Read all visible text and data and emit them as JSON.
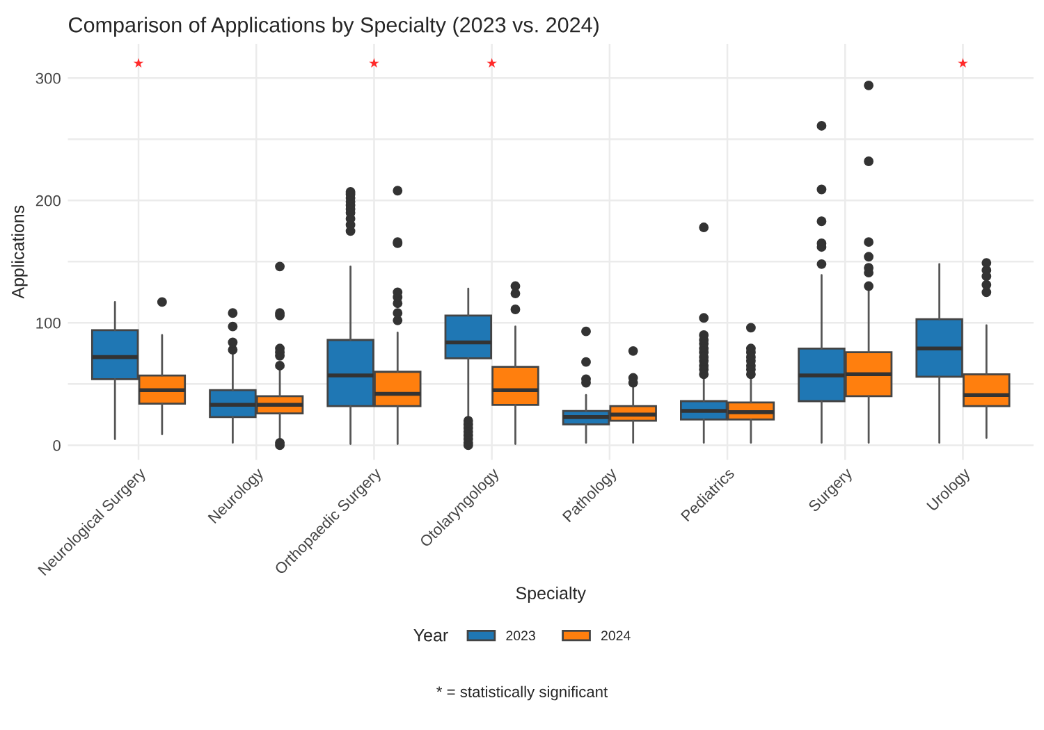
{
  "chart_data": {
    "type": "box",
    "title": "Comparison of Applications by Specialty (2023 vs. 2024)",
    "xlabel": "Specialty",
    "ylabel": "Applications",
    "legend_title": "Year",
    "categories": [
      "Neurological Surgery",
      "Neurology",
      "Orthopaedic Surgery",
      "Otolaryngology",
      "Pathology",
      "Pediatrics",
      "Surgery",
      "Urology"
    ],
    "series": [
      {
        "name": "2023",
        "color": "#1f77b4",
        "boxes": [
          {
            "low": 5,
            "q1": 54,
            "median": 72,
            "q3": 94,
            "high": 117
          },
          {
            "low": 2,
            "q1": 23,
            "median": 33,
            "q3": 45,
            "high": 75,
            "outliers": [
              78,
              84,
              97,
              108
            ]
          },
          {
            "low": 1,
            "q1": 32,
            "median": 57,
            "q3": 86,
            "high": 146,
            "outliers": [
              175,
              180,
              185,
              190,
              193,
              196,
              199,
              202,
              205,
              207
            ]
          },
          {
            "low": 22,
            "q1": 71,
            "median": 84,
            "q3": 106,
            "high": 128,
            "outliers": [
              0,
              2,
              5,
              8,
              11,
              14,
              17,
              20
            ]
          },
          {
            "low": 2,
            "q1": 17,
            "median": 23,
            "q3": 28,
            "high": 41,
            "outliers": [
              51,
              54,
              68,
              93
            ]
          },
          {
            "low": 2,
            "q1": 21,
            "median": 28,
            "q3": 36,
            "high": 54,
            "outliers": [
              58,
              62,
              65,
              69,
              72,
              76,
              79,
              83,
              86,
              90,
              104,
              178
            ]
          },
          {
            "low": 2,
            "q1": 36,
            "median": 57,
            "q3": 79,
            "high": 139,
            "outliers": [
              148,
              162,
              165,
              183,
              209,
              261
            ]
          },
          {
            "low": 2,
            "q1": 56,
            "median": 79,
            "q3": 103,
            "high": 148
          }
        ]
      },
      {
        "name": "2024",
        "color": "#ff7f0e",
        "boxes": [
          {
            "low": 9,
            "q1": 34,
            "median": 45,
            "q3": 57,
            "high": 90,
            "outliers": [
              117
            ]
          },
          {
            "low": 5,
            "q1": 26,
            "median": 33,
            "q3": 40,
            "high": 62,
            "outliers": [
              0,
              2,
              65,
              73,
              76,
              79,
              106,
              108,
              146
            ]
          },
          {
            "low": 1,
            "q1": 32,
            "median": 42,
            "q3": 60,
            "high": 92,
            "outliers": [
              102,
              108,
              116,
              121,
              125,
              165,
              166,
              208
            ]
          },
          {
            "low": 1,
            "q1": 33,
            "median": 45,
            "q3": 64,
            "high": 97,
            "outliers": [
              111,
              124,
              130
            ]
          },
          {
            "low": 2,
            "q1": 20,
            "median": 25,
            "q3": 32,
            "high": 47,
            "outliers": [
              51,
              55,
              77
            ]
          },
          {
            "low": 2,
            "q1": 21,
            "median": 27,
            "q3": 35,
            "high": 56,
            "outliers": [
              58,
              62,
              65,
              69,
              72,
              76,
              79,
              96
            ]
          },
          {
            "low": 2,
            "q1": 40,
            "median": 58,
            "q3": 76,
            "high": 127,
            "outliers": [
              130,
              141,
              145,
              154,
              166,
              232,
              294
            ]
          },
          {
            "low": 6,
            "q1": 32,
            "median": 41,
            "q3": 58,
            "high": 98,
            "outliers": [
              125,
              131,
              138,
              143,
              149
            ]
          }
        ]
      },
      {
        "type": "scatter",
        "color": "#ff2a2a",
        "marker": "star",
        "x": [
          "Neurological Surgery",
          "Orthopaedic Surgery",
          "Otolaryngology",
          "Urology"
        ],
        "values": [
          312,
          312,
          312,
          312
        ]
      }
    ],
    "ylim": [
      -12,
      328
    ],
    "yticks": [
      0,
      {
        "value": 50,
        "label": null
      },
      100,
      {
        "value": 150,
        "label": null
      },
      200,
      {
        "value": 250,
        "label": null
      },
      300
    ],
    "grid": true,
    "legend": "bottom",
    "annotations": [
      "* = statistically significant"
    ]
  }
}
